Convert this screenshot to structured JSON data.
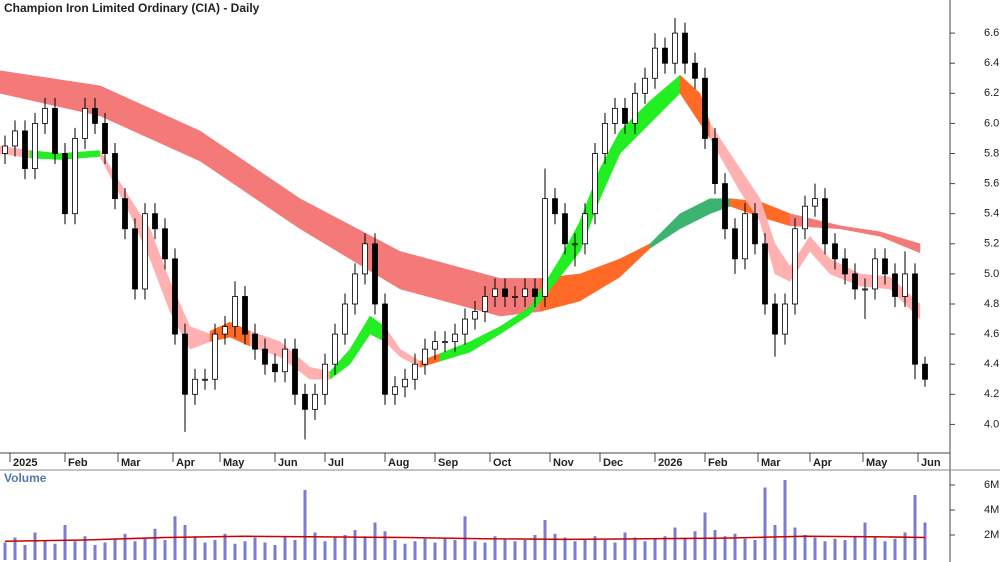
{
  "chart_data": {
    "type": "candlestick",
    "title": "Champion Iron Limited Ordinary (CIA) - Daily",
    "volume_title": "Volume",
    "xlim": [
      0,
      95
    ],
    "xticks": [
      {
        "value": 1,
        "label": "2025"
      },
      {
        "value": 6.5,
        "label": "Feb"
      },
      {
        "value": 11.8,
        "label": "Mar"
      },
      {
        "value": 17.3,
        "label": "Apr"
      },
      {
        "value": 22,
        "label": "May"
      },
      {
        "value": 27.5,
        "label": "Jun"
      },
      {
        "value": 32.5,
        "label": "Jul"
      },
      {
        "value": 38.5,
        "label": "Aug"
      },
      {
        "value": 43.5,
        "label": "Sep"
      },
      {
        "value": 49,
        "label": "Oct"
      },
      {
        "value": 55,
        "label": "Nov"
      },
      {
        "value": 60,
        "label": "Dec"
      },
      {
        "value": 65.5,
        "label": "2026"
      },
      {
        "value": 70.5,
        "label": "Feb"
      },
      {
        "value": 75.8,
        "label": "Mar"
      },
      {
        "value": 81,
        "label": "Apr"
      },
      {
        "value": 86.3,
        "label": "May"
      },
      {
        "value": 91.8,
        "label": "Jun"
      }
    ],
    "ylim": [
      3.81,
      6.82
    ],
    "yticks": [
      {
        "value": 4,
        "label": "4.0"
      },
      4.2,
      4.4,
      4.6,
      4.8,
      {
        "value": 5,
        "label": "5.0"
      },
      5.2,
      5.4,
      5.6,
      5.8,
      {
        "value": 6,
        "label": "6.0"
      },
      6.2,
      6.4,
      6.6
    ],
    "up_color": "#ffffff",
    "down_color": "#000000",
    "candles": [
      [
        5.8,
        5.92,
        5.73,
        5.85
      ],
      [
        5.85,
        6.02,
        5.78,
        5.95
      ],
      [
        5.95,
        6.02,
        5.63,
        5.7
      ],
      [
        5.7,
        6.07,
        5.63,
        6.0
      ],
      [
        6.0,
        6.17,
        5.93,
        6.1
      ],
      [
        6.1,
        6.17,
        5.73,
        5.8
      ],
      [
        5.8,
        5.87,
        5.33,
        5.4
      ],
      [
        5.4,
        5.97,
        5.33,
        5.9
      ],
      [
        5.9,
        6.17,
        5.83,
        6.1
      ],
      [
        6.1,
        6.17,
        5.93,
        6.0
      ],
      [
        6.0,
        6.07,
        5.73,
        5.8
      ],
      [
        5.8,
        5.87,
        5.43,
        5.5
      ],
      [
        5.5,
        5.57,
        5.23,
        5.3
      ],
      [
        5.3,
        5.37,
        4.83,
        4.9
      ],
      [
        4.9,
        5.47,
        4.83,
        5.4
      ],
      [
        5.4,
        5.47,
        5.23,
        5.3
      ],
      [
        5.3,
        5.37,
        5.03,
        5.1
      ],
      [
        5.1,
        5.17,
        4.53,
        4.6
      ],
      [
        4.6,
        4.67,
        3.95,
        4.2
      ],
      [
        4.2,
        4.37,
        4.13,
        4.3
      ],
      [
        4.3,
        4.37,
        4.23,
        4.3
      ],
      [
        4.3,
        4.67,
        4.23,
        4.6
      ],
      [
        4.6,
        4.72,
        4.53,
        4.65
      ],
      [
        4.65,
        4.95,
        4.58,
        4.85
      ],
      [
        4.85,
        4.92,
        4.53,
        4.6
      ],
      [
        4.6,
        4.67,
        4.43,
        4.5
      ],
      [
        4.5,
        4.57,
        4.33,
        4.4
      ],
      [
        4.4,
        4.47,
        4.28,
        4.35
      ],
      [
        4.35,
        4.57,
        4.28,
        4.5
      ],
      [
        4.5,
        4.57,
        4.13,
        4.2
      ],
      [
        4.2,
        4.27,
        3.9,
        4.1
      ],
      [
        4.1,
        4.27,
        4.03,
        4.2
      ],
      [
        4.2,
        4.47,
        4.13,
        4.4
      ],
      [
        4.4,
        4.67,
        4.33,
        4.6
      ],
      [
        4.6,
        4.87,
        4.53,
        4.8
      ],
      [
        4.8,
        5.07,
        4.73,
        5.0
      ],
      [
        5.0,
        5.27,
        4.93,
        5.2
      ],
      [
        5.2,
        5.27,
        4.73,
        4.8
      ],
      [
        4.8,
        4.87,
        4.13,
        4.2
      ],
      [
        4.2,
        4.32,
        4.13,
        4.25
      ],
      [
        4.25,
        4.37,
        4.18,
        4.3
      ],
      [
        4.3,
        4.47,
        4.23,
        4.4
      ],
      [
        4.4,
        4.57,
        4.33,
        4.5
      ],
      [
        4.5,
        4.62,
        4.43,
        4.55
      ],
      [
        4.55,
        4.62,
        4.48,
        4.55
      ],
      [
        4.55,
        4.67,
        4.48,
        4.6
      ],
      [
        4.6,
        4.77,
        4.53,
        4.7
      ],
      [
        4.7,
        4.82,
        4.63,
        4.75
      ],
      [
        4.75,
        4.92,
        4.68,
        4.85
      ],
      [
        4.85,
        4.97,
        4.78,
        4.9
      ],
      [
        4.9,
        4.97,
        4.78,
        4.85
      ],
      [
        4.85,
        4.92,
        4.78,
        4.85
      ],
      [
        4.85,
        4.97,
        4.78,
        4.9
      ],
      [
        4.9,
        4.97,
        4.78,
        4.85
      ],
      [
        4.85,
        5.7,
        4.78,
        5.5
      ],
      [
        5.5,
        5.57,
        5.33,
        5.4
      ],
      [
        5.4,
        5.47,
        5.13,
        5.2
      ],
      [
        5.2,
        5.27,
        5.05,
        5.2
      ],
      [
        5.2,
        5.47,
        5.13,
        5.4
      ],
      [
        5.4,
        5.87,
        5.33,
        5.8
      ],
      [
        5.8,
        6.07,
        5.73,
        6.0
      ],
      [
        6.0,
        6.17,
        5.93,
        6.1
      ],
      [
        6.1,
        6.17,
        5.93,
        6.0
      ],
      [
        6.0,
        6.27,
        5.93,
        6.2
      ],
      [
        6.2,
        6.37,
        6.13,
        6.3
      ],
      [
        6.3,
        6.6,
        6.23,
        6.5
      ],
      [
        6.5,
        6.57,
        6.33,
        6.4
      ],
      [
        6.4,
        6.7,
        6.33,
        6.6
      ],
      [
        6.6,
        6.67,
        6.33,
        6.4
      ],
      [
        6.4,
        6.47,
        6.23,
        6.3
      ],
      [
        6.3,
        6.37,
        5.83,
        5.9
      ],
      [
        5.9,
        5.97,
        5.53,
        5.6
      ],
      [
        5.6,
        5.67,
        5.23,
        5.3
      ],
      [
        5.3,
        5.37,
        5.0,
        5.1
      ],
      [
        5.1,
        5.47,
        5.03,
        5.4
      ],
      [
        5.4,
        5.47,
        5.13,
        5.2
      ],
      [
        5.2,
        5.27,
        4.73,
        4.8
      ],
      [
        4.8,
        4.87,
        4.45,
        4.6
      ],
      [
        4.6,
        4.87,
        4.53,
        4.8
      ],
      [
        4.8,
        5.37,
        4.73,
        5.3
      ],
      [
        5.3,
        5.52,
        5.23,
        5.45
      ],
      [
        5.45,
        5.6,
        5.38,
        5.5
      ],
      [
        5.5,
        5.57,
        5.13,
        5.2
      ],
      [
        5.2,
        5.27,
        5.03,
        5.1
      ],
      [
        5.1,
        5.17,
        4.93,
        5.0
      ],
      [
        5.0,
        5.07,
        4.83,
        4.9
      ],
      [
        4.9,
        4.97,
        4.7,
        4.9
      ],
      [
        4.9,
        5.17,
        4.83,
        5.1
      ],
      [
        5.1,
        5.17,
        4.93,
        5.0
      ],
      [
        5.0,
        5.07,
        4.78,
        4.85
      ],
      [
        4.85,
        5.15,
        4.78,
        5.0
      ],
      [
        5.0,
        5.07,
        4.3,
        4.4
      ],
      [
        4.4,
        4.45,
        4.25,
        4.3
      ]
    ],
    "ribbons": [
      {
        "color": "#f47a7a",
        "x": [
          0,
          10,
          20,
          30,
          40,
          50,
          54
        ],
        "upper": [
          6.35,
          6.25,
          5.95,
          5.5,
          5.15,
          4.97,
          4.97
        ],
        "lower": [
          6.2,
          6.05,
          5.75,
          5.3,
          4.9,
          4.72,
          4.75
        ]
      },
      {
        "color": "#ff6a26",
        "x": [
          54,
          58,
          62,
          65
        ],
        "upper": [
          4.97,
          5.0,
          5.1,
          5.2
        ],
        "lower": [
          4.75,
          4.82,
          4.98,
          5.17
        ]
      },
      {
        "color": "#3cb371",
        "x": [
          65,
          68,
          71,
          73
        ],
        "upper": [
          5.2,
          5.4,
          5.5,
          5.5
        ],
        "lower": [
          5.17,
          5.3,
          5.4,
          5.45
        ]
      },
      {
        "color": "#ff6a26",
        "x": [
          73,
          76,
          79
        ],
        "upper": [
          5.5,
          5.48,
          5.4
        ],
        "lower": [
          5.45,
          5.38,
          5.32
        ]
      },
      {
        "color": "#f47a7a",
        "x": [
          79,
          84,
          88,
          92
        ],
        "upper": [
          5.4,
          5.32,
          5.28,
          5.2
        ],
        "lower": [
          5.32,
          5.3,
          5.25,
          5.14
        ]
      },
      {
        "color": "#ffb0b0",
        "x": [
          0,
          3
        ],
        "upper": [
          5.85,
          5.82
        ],
        "lower": [
          5.8,
          5.77
        ]
      },
      {
        "color": "#22ee22",
        "x": [
          3,
          6,
          10
        ],
        "upper": [
          5.82,
          5.8,
          5.82
        ],
        "lower": [
          5.77,
          5.76,
          5.78
        ]
      },
      {
        "color": "#ffb0b0",
        "x": [
          10,
          13,
          15,
          17,
          19,
          21
        ],
        "upper": [
          5.82,
          5.5,
          5.3,
          4.95,
          4.65,
          4.6
        ],
        "lower": [
          5.78,
          5.4,
          5.1,
          4.75,
          4.5,
          4.55
        ]
      },
      {
        "color": "#ff6a26",
        "x": [
          21,
          23,
          25
        ],
        "upper": [
          4.62,
          4.68,
          4.62
        ],
        "lower": [
          4.55,
          4.58,
          4.52
        ]
      },
      {
        "color": "#ffb0b0",
        "x": [
          25,
          28,
          31,
          33
        ],
        "upper": [
          4.62,
          4.55,
          4.38,
          4.35
        ],
        "lower": [
          4.52,
          4.45,
          4.3,
          4.3
        ]
      },
      {
        "color": "#22ee22",
        "x": [
          33,
          35,
          37,
          38.5
        ],
        "upper": [
          4.35,
          4.5,
          4.72,
          4.65
        ],
        "lower": [
          4.3,
          4.4,
          4.6,
          4.55
        ]
      },
      {
        "color": "#ffb0b0",
        "x": [
          38.5,
          40,
          42
        ],
        "upper": [
          4.65,
          4.5,
          4.42
        ],
        "lower": [
          4.55,
          4.45,
          4.38
        ]
      },
      {
        "color": "#ff6a26",
        "x": [
          42,
          44
        ],
        "upper": [
          4.42,
          4.47
        ],
        "lower": [
          4.38,
          4.42
        ]
      },
      {
        "color": "#22ee22",
        "x": [
          44,
          47,
          50,
          53,
          56,
          58,
          60,
          62,
          65,
          68
        ],
        "upper": [
          4.47,
          4.55,
          4.65,
          4.78,
          5.1,
          5.35,
          5.7,
          5.95,
          6.15,
          6.32
        ],
        "lower": [
          4.42,
          4.48,
          4.6,
          4.73,
          4.98,
          5.15,
          5.5,
          5.8,
          6.0,
          6.2
        ]
      },
      {
        "color": "#ff6a26",
        "x": [
          68,
          70,
          71
        ],
        "upper": [
          6.32,
          6.2,
          6.0
        ],
        "lower": [
          6.2,
          6.0,
          5.9
        ]
      },
      {
        "color": "#ffb0b0",
        "x": [
          71,
          74,
          76,
          77.5,
          79,
          81,
          83,
          86,
          89,
          92
        ],
        "upper": [
          6.0,
          5.7,
          5.5,
          5.2,
          5.05,
          5.25,
          5.1,
          5.0,
          4.98,
          4.8
        ],
        "lower": [
          5.9,
          5.55,
          5.35,
          5.0,
          4.95,
          5.15,
          5.0,
          4.92,
          4.9,
          4.7
        ]
      }
    ],
    "volume": {
      "color": "#7b7bd0",
      "ylim": [
        0,
        6800000
      ],
      "yticks": [
        {
          "value": 2000000,
          "label": "2M"
        },
        {
          "value": 4000000,
          "label": "4M"
        },
        {
          "value": 6000000,
          "label": "6M"
        }
      ],
      "values": [
        1400000,
        1800000,
        1200000,
        2200000,
        1600000,
        1300000,
        2800000,
        1500000,
        1900000,
        1200000,
        1400000,
        1700000,
        2100000,
        1500000,
        1800000,
        2500000,
        1600000,
        3500000,
        2800000,
        1900000,
        1400000,
        1600000,
        2100000,
        1300000,
        1500000,
        1800000,
        1400000,
        1200000,
        1900000,
        1600000,
        5600000,
        2200000,
        1500000,
        1800000,
        2000000,
        2400000,
        1900000,
        3000000,
        2300000,
        1600000,
        1300000,
        1500000,
        1700000,
        1400000,
        1800000,
        1600000,
        3500000,
        1500000,
        1400000,
        1900000,
        1700000,
        1500000,
        1600000,
        2000000,
        3200000,
        2100000,
        1800000,
        1500000,
        1700000,
        1900000,
        1600000,
        1400000,
        2200000,
        1800000,
        1500000,
        1700000,
        1900000,
        2600000,
        1800000,
        2300000,
        3800000,
        2400000,
        1900000,
        2100000,
        1700000,
        1600000,
        5800000,
        2800000,
        6400000,
        2600000,
        2000000,
        1800000,
        1500000,
        1700000,
        1600000,
        1900000,
        3000000,
        1800000,
        1500000,
        1700000,
        2200000,
        5200000,
        3000000
      ],
      "average": {
        "color": "#cc0000",
        "x": [
          0,
          8,
          16,
          24,
          32,
          40,
          48,
          56,
          64,
          72,
          80,
          88,
          92
        ],
        "values": [
          1500000,
          1600000,
          1800000,
          1900000,
          1850000,
          1800000,
          1700000,
          1650000,
          1700000,
          1750000,
          1900000,
          1850000,
          1800000
        ]
      }
    }
  }
}
